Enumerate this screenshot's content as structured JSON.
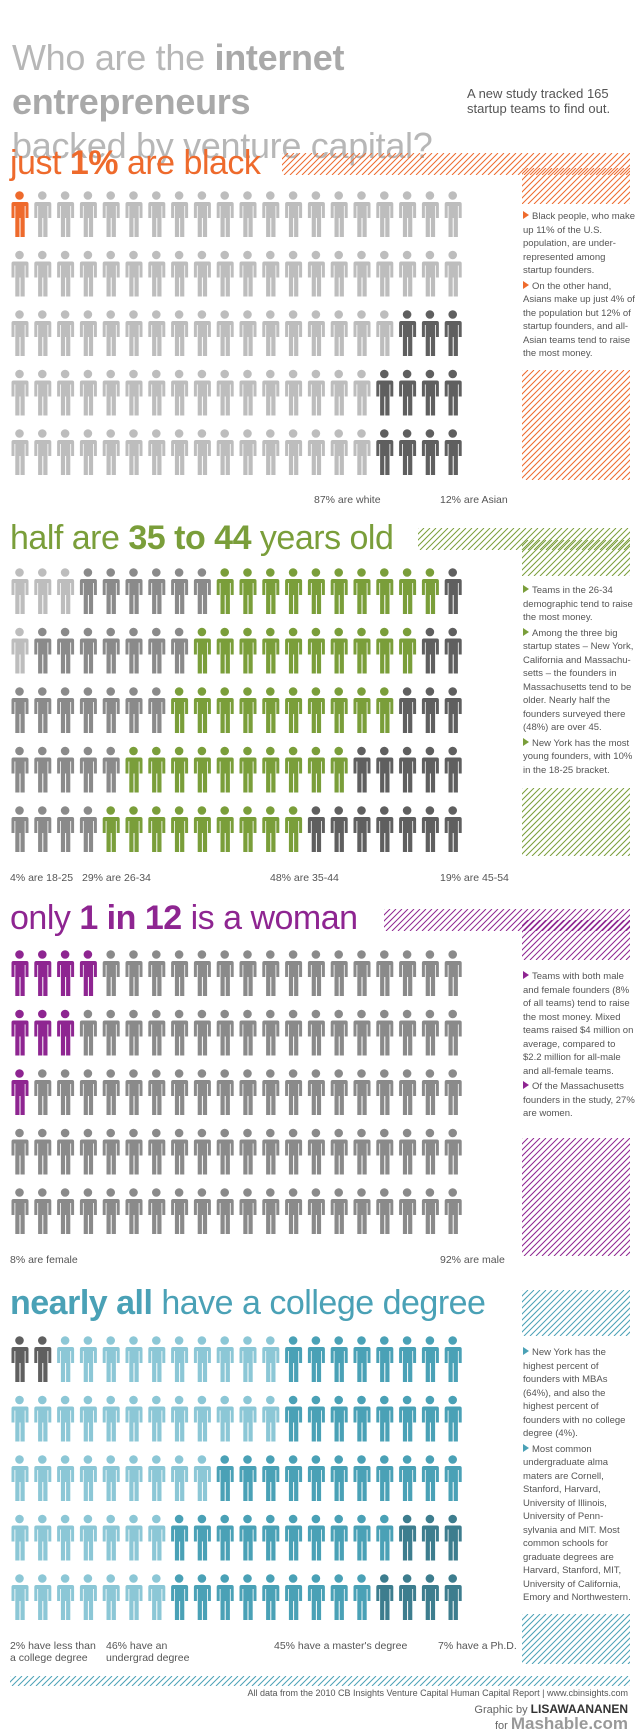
{
  "title": {
    "line1_pre": "Who are the ",
    "line1_bold": "internet entrepreneurs",
    "line2": "backed by venture capital?"
  },
  "subtitle": "A new study tracked 165 startup teams to find out.",
  "colors": {
    "orange": "#ee6a2c",
    "green": "#7a9e3a",
    "purple": "#8e2591",
    "blue": "#4aa1b6",
    "light_gray": "#bdbdbd",
    "mid_gray": "#8a8a8a",
    "dark_gray": "#5f5f5f"
  },
  "sections": [
    {
      "pre": "just ",
      "bold": "1%",
      "post": " are black",
      "color": "#ee6a2c",
      "notes": [
        "Black people, who make up 11% of the U.S. population, are under-represented among startup founders.",
        "On the other hand, Asians make up just 4% of the population but 12% of startup founders, and all-Asian teams tend to raise the most money."
      ],
      "labels": [
        "87% are white",
        "12% are Asian"
      ]
    },
    {
      "pre": "half are ",
      "bold": "35 to 44",
      "post": " years old",
      "color": "#7a9e3a",
      "notes": [
        "Teams in the 26-34 demographic tend to raise the most money.",
        "Among the three big startup states – New York, California and Massachu-setts – the founders in Massachusetts tend to be older. Nearly half the founders surveyed there (48%) are over 45.",
        "New York has the most young founders, with 10% in the 18-25 bracket."
      ],
      "labels": [
        "4% are 18-25",
        "29% are 26-34",
        "48% are 35-44",
        "19% are 45-54"
      ]
    },
    {
      "pre": "only ",
      "bold": "1 in 12",
      "post": " is a woman",
      "color": "#8e2591",
      "notes": [
        "Teams with both male and female founders (8% of all teams) tend to raise the most money. Mixed teams raised $4 million on average, compared to $2.2 million for all-male and all-female teams.",
        "Of the Massachusetts founders in the study, 27% are women."
      ],
      "labels": [
        "8% are female",
        "92% are male"
      ]
    },
    {
      "pre": "",
      "bold": "nearly all",
      "post": " have a college degree",
      "color": "#4aa1b6",
      "notes": [
        "New York has the highest percent of founders with MBAs (64%), and also the highest percent of founders with no college degree (4%).",
        "Most common undergraduate alma maters are Cornell, Stanford, Harvard, University of Illinois, University of Penn-sylvania and MIT. Most common schools for graduate degrees are Harvard, Stanford, MIT, University of California, Emory and Northwestern."
      ],
      "labels": [
        "2% have less than a college degree",
        "46% have an undergrad degree",
        "45% have a master's degree",
        "7% have a Ph.D."
      ]
    }
  ],
  "footer": {
    "source": "All data from the 2010 CB Insights Venture Capital Human Capital Report | www.cbinsights.com",
    "credit_pre": "Graphic by ",
    "credit_name": "LISAWAANANEN",
    "credit_for": "for ",
    "credit_site": "Mashable.com"
  }
}
